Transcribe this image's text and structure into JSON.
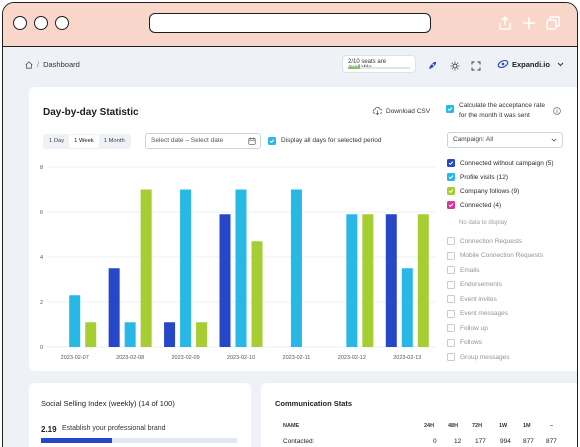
{
  "browser": {
    "icons": [
      "share-icon",
      "plus-icon",
      "copy-icon"
    ]
  },
  "nav": {
    "breadcrumb": "Dashboard",
    "seats_text": "2/10 seats are available",
    "seats_fraction": 0.2,
    "account_name": "Expandi.io",
    "colors": {
      "seats_fill": "#7ac94a"
    }
  },
  "stats": {
    "title": "Day-by-day Statistic",
    "download_label": "Download CSV",
    "acceptance_label_1": "Calculate the acceptance rate",
    "acceptance_label_2": "for the month it was sent",
    "range_options": [
      "1 Day",
      "1 Week",
      "1 Month"
    ],
    "range_selected": "1 Week",
    "date_placeholder": "Select date – Select date",
    "display_all_label": "Display all days for selected period",
    "campaign_select": "Campaign: All",
    "legend": [
      {
        "label": "Connected without campaign (5)",
        "color": "#2547c8"
      },
      {
        "label": "Profile visits (12)",
        "color": "#27b8e6"
      },
      {
        "label": "Company follows (9)",
        "color": "#a6cd32"
      },
      {
        "label": "Connected (4)",
        "color": "#d6379b"
      }
    ],
    "no_data_label": "No data to display",
    "no_data_items": [
      "Connection Requests",
      "Mobile Connection Requests",
      "Emails",
      "Endorsements",
      "Event invites",
      "Event messages",
      "Follow up",
      "Follows",
      "Group messages"
    ]
  },
  "chart_data": {
    "type": "bar",
    "categories": [
      "2023-02-07",
      "2023-02-08",
      "2023-02-09",
      "2023-02-10",
      "2023-02-11",
      "2023-02-12",
      "2023-02-13"
    ],
    "series": [
      {
        "name": "Connected without campaign",
        "color": "#2547c8",
        "values": [
          0,
          3.5,
          1.1,
          5.9,
          0,
          0,
          5.9
        ]
      },
      {
        "name": "Profile visits",
        "color": "#27b8e6",
        "values": [
          2.3,
          1.1,
          7,
          7,
          7,
          5.9,
          3.5
        ]
      },
      {
        "name": "Company follows",
        "color": "#a6cd32",
        "values": [
          1.1,
          7,
          1.1,
          4.7,
          0,
          5.9,
          5.9
        ]
      }
    ],
    "yticks": [
      0,
      2,
      4,
      6,
      8
    ],
    "ylim": [
      0,
      8
    ],
    "grid": true
  },
  "ssi": {
    "title": "Social Selling Index (weekly) (14 of 100)",
    "value": "2.19",
    "label": "Establish your professional brand",
    "fraction": 0.36
  },
  "comm": {
    "title": "Communication Stats",
    "headers": [
      "NAME",
      "24H",
      "48H",
      "72H",
      "1W",
      "1M",
      "–"
    ],
    "row_label": "Contacted:",
    "row_values": [
      "0",
      "12",
      "177",
      "994",
      "877",
      "877"
    ]
  }
}
